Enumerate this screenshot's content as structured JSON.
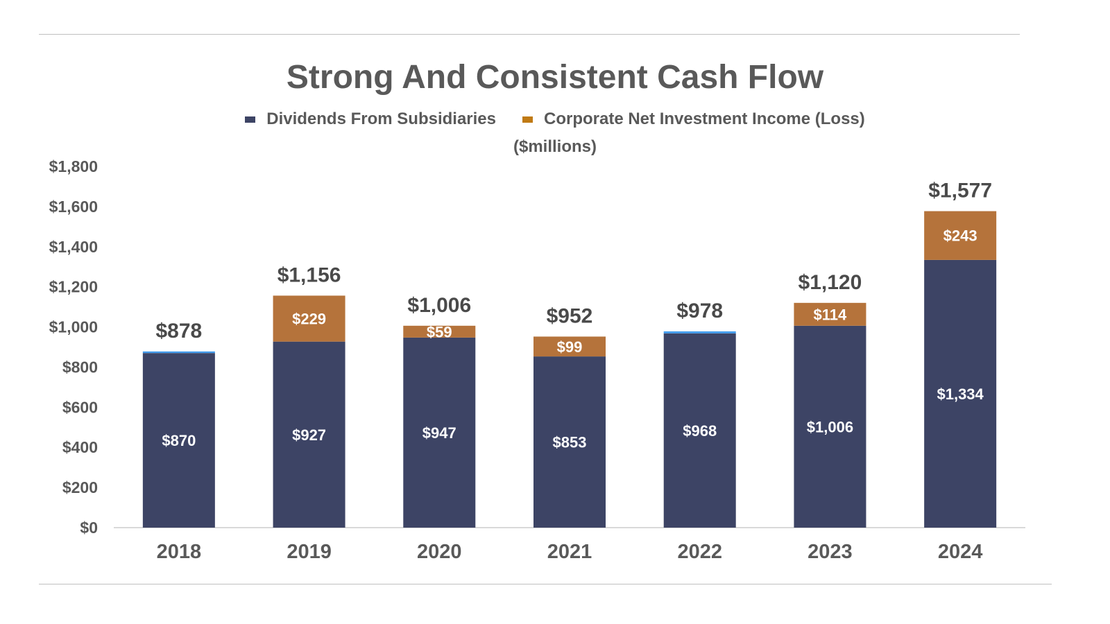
{
  "chart_data": {
    "type": "bar",
    "stacked": true,
    "title": "Strong And Consistent Cash Flow",
    "unit_label": "($millions)",
    "categories": [
      "2018",
      "2019",
      "2020",
      "2021",
      "2022",
      "2023",
      "2024"
    ],
    "series": [
      {
        "name": "Dividends From Subsidiaries",
        "color": "#3d4465",
        "values": [
          870,
          927,
          947,
          853,
          968,
          1006,
          1334
        ],
        "labels": [
          "$870",
          "$927",
          "$947",
          "$853",
          "$968",
          "$1,006",
          "$1,334"
        ]
      },
      {
        "name": "",
        "color": "#419bec",
        "values": [
          8,
          0,
          0,
          0,
          10,
          0,
          0
        ],
        "labels": [
          "",
          "",
          "",
          "",
          "",
          "",
          ""
        ]
      },
      {
        "name": "Corporate Net Investment Income (Loss)",
        "color": "#b5733b",
        "values": [
          0,
          229,
          59,
          99,
          0,
          114,
          243
        ],
        "labels": [
          "",
          "$229",
          "$59",
          "$99",
          "",
          "$114",
          "$243"
        ]
      }
    ],
    "totals": [
      "$878",
      "$1,156",
      "$1,006",
      "$952",
      "$978",
      "$1,120",
      "$1,577"
    ],
    "ylim": [
      0,
      1800
    ],
    "yticks": [
      0,
      200,
      400,
      600,
      800,
      1000,
      1200,
      1400,
      1600,
      1800
    ],
    "ytick_labels": [
      "$0",
      "$200",
      "$400",
      "$600",
      "$800",
      "$1,000",
      "$1,200",
      "$1,400",
      "$1,600",
      "$1,800"
    ],
    "grid": false,
    "legend_position": "top",
    "legend": [
      {
        "label": "Dividends From Subsidiaries",
        "color": "#3d4465"
      },
      {
        "label": "Corporate Net Investment Income (Loss)",
        "color": "#c07a14"
      }
    ]
  }
}
